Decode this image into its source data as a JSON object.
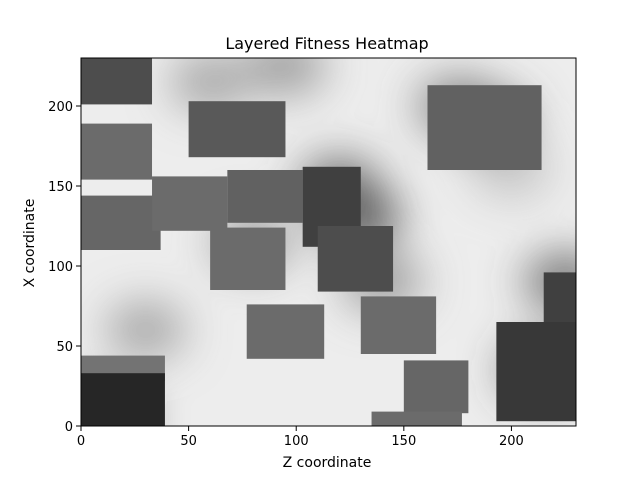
{
  "chart_data": {
    "type": "heatmap",
    "title": "Layered Fitness Heatmap",
    "xlabel": "Z coordinate",
    "ylabel": "X coordinate",
    "xlim": [
      0,
      230
    ],
    "ylim": [
      0,
      230
    ],
    "xticks": [
      0,
      50,
      100,
      150,
      200
    ],
    "yticks": [
      0,
      50,
      100,
      150,
      200
    ],
    "colormap": "gray",
    "grid": false,
    "background_field": {
      "base_level": 0.93,
      "blobs": [
        {
          "x": 190,
          "y": 190,
          "level": 0.35
        },
        {
          "x": 175,
          "y": 200,
          "level": 0.45
        },
        {
          "x": 130,
          "y": 130,
          "level": 0.25
        },
        {
          "x": 120,
          "y": 150,
          "level": 0.35
        },
        {
          "x": 140,
          "y": 90,
          "level": 0.55
        },
        {
          "x": 30,
          "y": 60,
          "level": 0.6
        },
        {
          "x": 10,
          "y": 5,
          "level": 0.15
        },
        {
          "x": 60,
          "y": 215,
          "level": 0.6
        },
        {
          "x": 95,
          "y": 225,
          "level": 0.55
        },
        {
          "x": 225,
          "y": 90,
          "level": 0.35
        },
        {
          "x": 215,
          "y": 35,
          "level": 0.3
        },
        {
          "x": 80,
          "y": 115,
          "level": 0.55
        },
        {
          "x": 200,
          "y": 160,
          "level": 0.75
        }
      ]
    },
    "patches": [
      {
        "x0": 0,
        "x1": 33,
        "y0": 201,
        "y1": 230,
        "level": 0.3
      },
      {
        "x0": 0,
        "x1": 33,
        "y0": 154,
        "y1": 189,
        "level": 0.42
      },
      {
        "x0": 0,
        "x1": 37,
        "y0": 110,
        "y1": 144,
        "level": 0.4
      },
      {
        "x0": 33,
        "x1": 68,
        "y0": 122,
        "y1": 156,
        "level": 0.42
      },
      {
        "x0": 50,
        "x1": 95,
        "y0": 168,
        "y1": 203,
        "level": 0.35
      },
      {
        "x0": 68,
        "x1": 103,
        "y0": 127,
        "y1": 160,
        "level": 0.38
      },
      {
        "x0": 103,
        "x1": 130,
        "y0": 112,
        "y1": 162,
        "level": 0.25
      },
      {
        "x0": 60,
        "x1": 95,
        "y0": 85,
        "y1": 124,
        "level": 0.42
      },
      {
        "x0": 110,
        "x1": 145,
        "y0": 84,
        "y1": 125,
        "level": 0.3
      },
      {
        "x0": 161,
        "x1": 214,
        "y0": 160,
        "y1": 213,
        "level": 0.38
      },
      {
        "x0": 77,
        "x1": 113,
        "y0": 42,
        "y1": 76,
        "level": 0.42
      },
      {
        "x0": 130,
        "x1": 165,
        "y0": 45,
        "y1": 81,
        "level": 0.42
      },
      {
        "x0": 150,
        "x1": 180,
        "y0": 8,
        "y1": 41,
        "level": 0.4
      },
      {
        "x0": 135,
        "x1": 177,
        "y0": 0,
        "y1": 9,
        "level": 0.42
      },
      {
        "x0": 193,
        "x1": 230,
        "y0": 3,
        "y1": 65,
        "level": 0.22
      },
      {
        "x0": 215,
        "x1": 230,
        "y0": 65,
        "y1": 96,
        "level": 0.25
      },
      {
        "x0": 0,
        "x1": 39,
        "y0": 28,
        "y1": 44,
        "level": 0.45
      },
      {
        "x0": 0,
        "x1": 39,
        "y0": 0,
        "y1": 33,
        "level": 0.15
      }
    ]
  }
}
